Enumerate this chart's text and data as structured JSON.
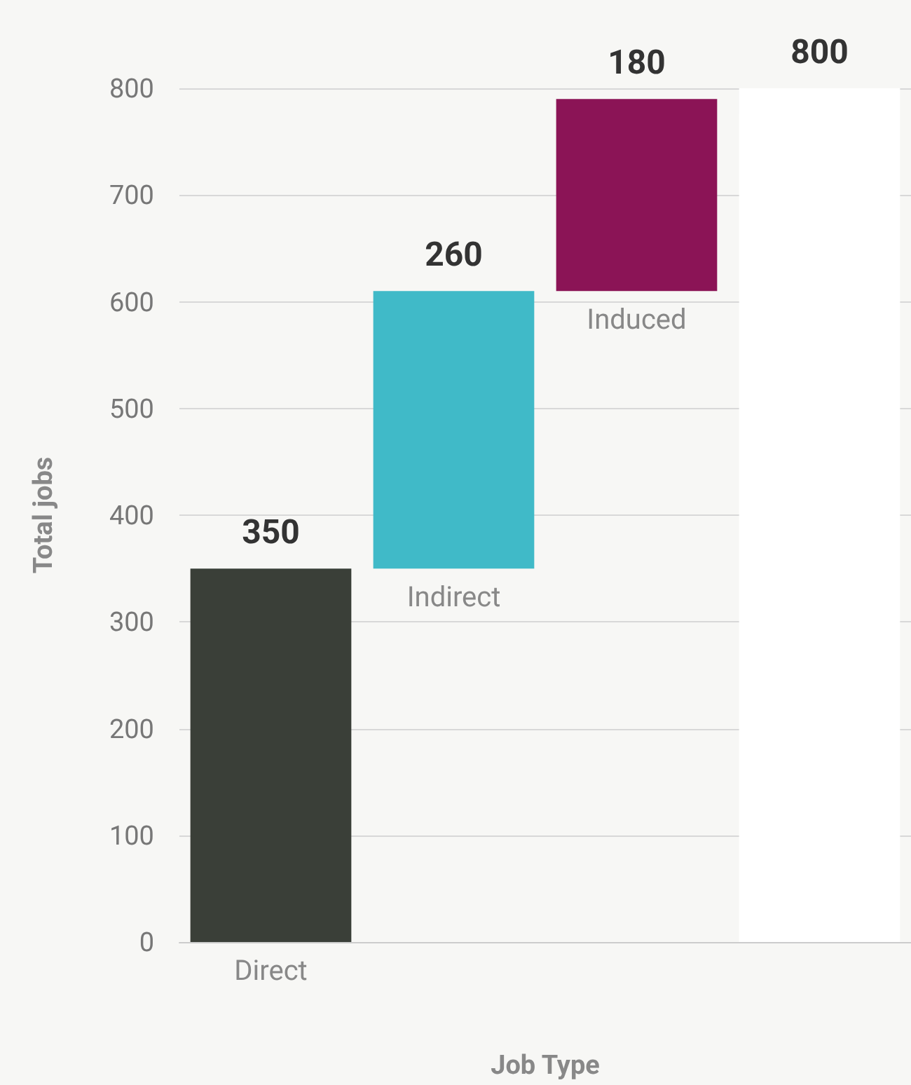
{
  "chart_data": {
    "type": "bar",
    "xlabel": "Job Type",
    "ylabel": "Total jobs",
    "categories": [
      "Direct",
      "Indirect",
      "Induced",
      null
    ],
    "values": [
      350,
      260,
      180,
      800
    ],
    "base": [
      0,
      350,
      610,
      0
    ],
    "colors": [
      "#3a3f38",
      "#40bac8",
      "#8b1456",
      "#ffffff"
    ],
    "ylim": [
      0,
      800
    ],
    "yticks": [
      0,
      100,
      200,
      300,
      400,
      500,
      600,
      700,
      800
    ],
    "grid": "y",
    "data_labels": true
  }
}
